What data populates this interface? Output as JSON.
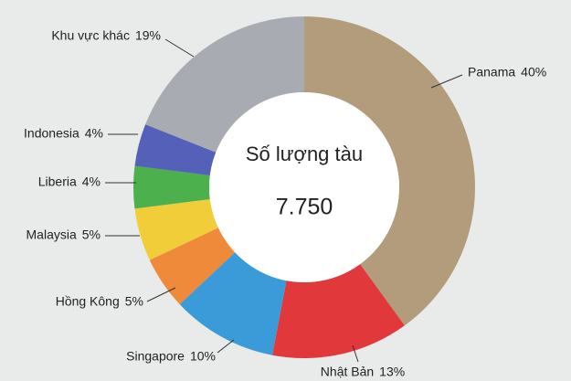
{
  "chart_data": {
    "type": "donut",
    "categories": [
      "Panama",
      "Nhật Bản",
      "Singapore",
      "Hồng Kông",
      "Malaysia",
      "Liberia",
      "Indonesia",
      "Khu vực khác"
    ],
    "values": [
      40,
      13,
      10,
      5,
      5,
      4,
      4,
      19
    ],
    "value_labels": [
      "40%",
      "13%",
      "10%",
      "5%",
      "5%",
      "4%",
      "4%",
      "19%"
    ],
    "colors": [
      "#b29c7c",
      "#e1383b",
      "#3b9ad8",
      "#ef8a3b",
      "#f2cd3a",
      "#4cb04c",
      "#5560b8",
      "#a8acb2"
    ],
    "center_title": "Số lượng tàu",
    "center_value": "7.750"
  }
}
